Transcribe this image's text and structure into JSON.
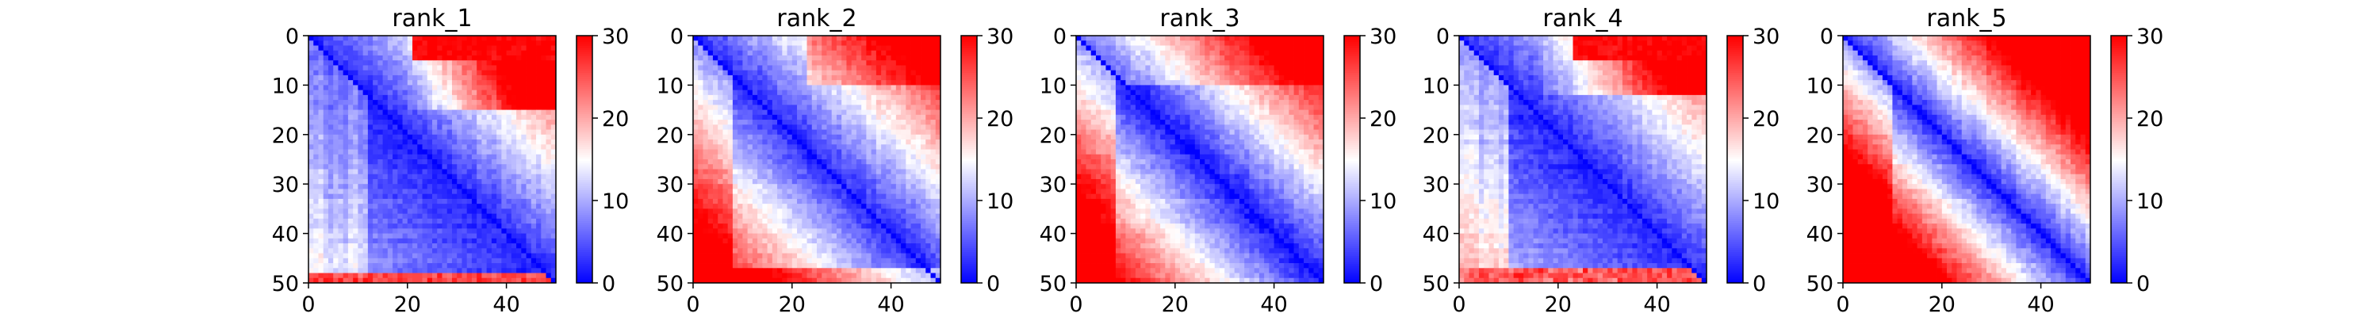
{
  "chart_data": [
    {
      "type": "heatmap",
      "title": "rank_1",
      "xlim": [
        0,
        50
      ],
      "ylim": [
        50,
        0
      ],
      "xticks": [
        "0",
        "20",
        "40"
      ],
      "yticks": [
        "0",
        "10",
        "20",
        "30",
        "40",
        "50"
      ],
      "colorbar": {
        "range": [
          0,
          30
        ],
        "ticks": [
          "0",
          "10",
          "20",
          "30"
        ],
        "colormap": "bwr"
      },
      "description": "Pairwise distance matrix (symmetric-ish, near-zero on diagonal); upper-right block reaches ~30, lower triangle mostly low (~5-12)."
    },
    {
      "type": "heatmap",
      "title": "rank_2",
      "xlim": [
        0,
        50
      ],
      "ylim": [
        50,
        0
      ],
      "xticks": [
        "0",
        "20",
        "40"
      ],
      "yticks": [
        "0",
        "10",
        "20",
        "30",
        "40",
        "50"
      ],
      "colorbar": {
        "range": [
          0,
          30
        ],
        "ticks": [
          "0",
          "10",
          "20",
          "30"
        ],
        "colormap": "bwr"
      },
      "description": "Distance matrix with low values near diagonal band; both upper-right and lower-left corners high (~25-30)."
    },
    {
      "type": "heatmap",
      "title": "rank_3",
      "xlim": [
        0,
        50
      ],
      "ylim": [
        50,
        0
      ],
      "xticks": [
        "0",
        "20",
        "40"
      ],
      "yticks": [
        "0",
        "10",
        "20",
        "30",
        "40",
        "50"
      ],
      "colorbar": {
        "range": [
          0,
          30
        ],
        "ticks": [
          "0",
          "10",
          "20",
          "30"
        ],
        "colormap": "bwr"
      },
      "description": "Distance matrix with strong diagonal band; far-off-diagonal values high (~25-30)."
    },
    {
      "type": "heatmap",
      "title": "rank_4",
      "xlim": [
        0,
        50
      ],
      "ylim": [
        50,
        0
      ],
      "xticks": [
        "0",
        "20",
        "40"
      ],
      "yticks": [
        "0",
        "10",
        "20",
        "30",
        "40",
        "50"
      ],
      "colorbar": {
        "range": [
          0,
          30
        ],
        "ticks": [
          "0",
          "10",
          "20",
          "30"
        ],
        "colormap": "bwr"
      },
      "description": "Similar to rank_1 with wider low-value region in lower-right; upper-right corner ~30."
    },
    {
      "type": "heatmap",
      "title": "rank_5",
      "xlim": [
        0,
        50
      ],
      "ylim": [
        50,
        0
      ],
      "xticks": [
        "0",
        "20",
        "40"
      ],
      "yticks": [
        "0",
        "10",
        "20",
        "30",
        "40",
        "50"
      ],
      "colorbar": {
        "range": [
          0,
          30
        ],
        "ticks": [
          "0",
          "10",
          "20",
          "30"
        ],
        "colormap": "bwr"
      },
      "description": "Narrow low-value diagonal band; most off-diagonal values high (~20-30)."
    }
  ],
  "colors": {
    "low": "#0000ff",
    "mid": "#ffffff",
    "high": "#ff0000"
  }
}
